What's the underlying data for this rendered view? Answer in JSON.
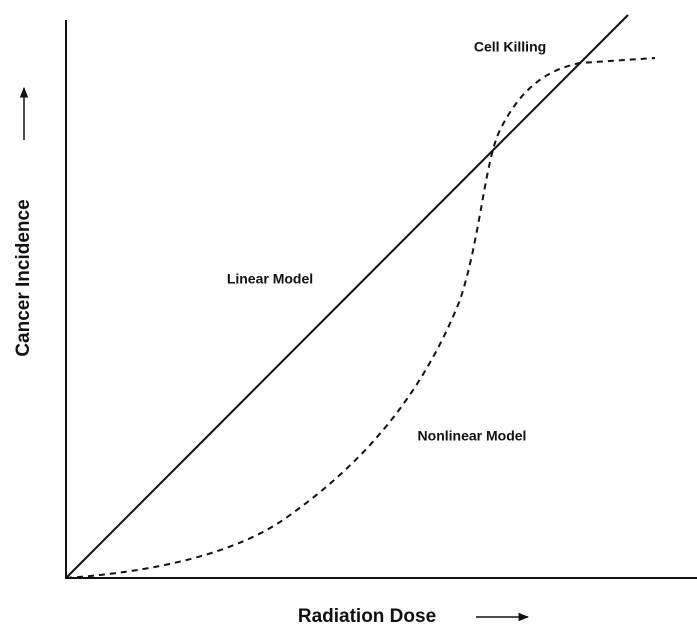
{
  "axes": {
    "x_label": "Radiation Dose",
    "y_label": "Cancer Incidence"
  },
  "annotations": [
    "Cell Killing",
    "Linear Model",
    "Nonlinear Model"
  ]
}
